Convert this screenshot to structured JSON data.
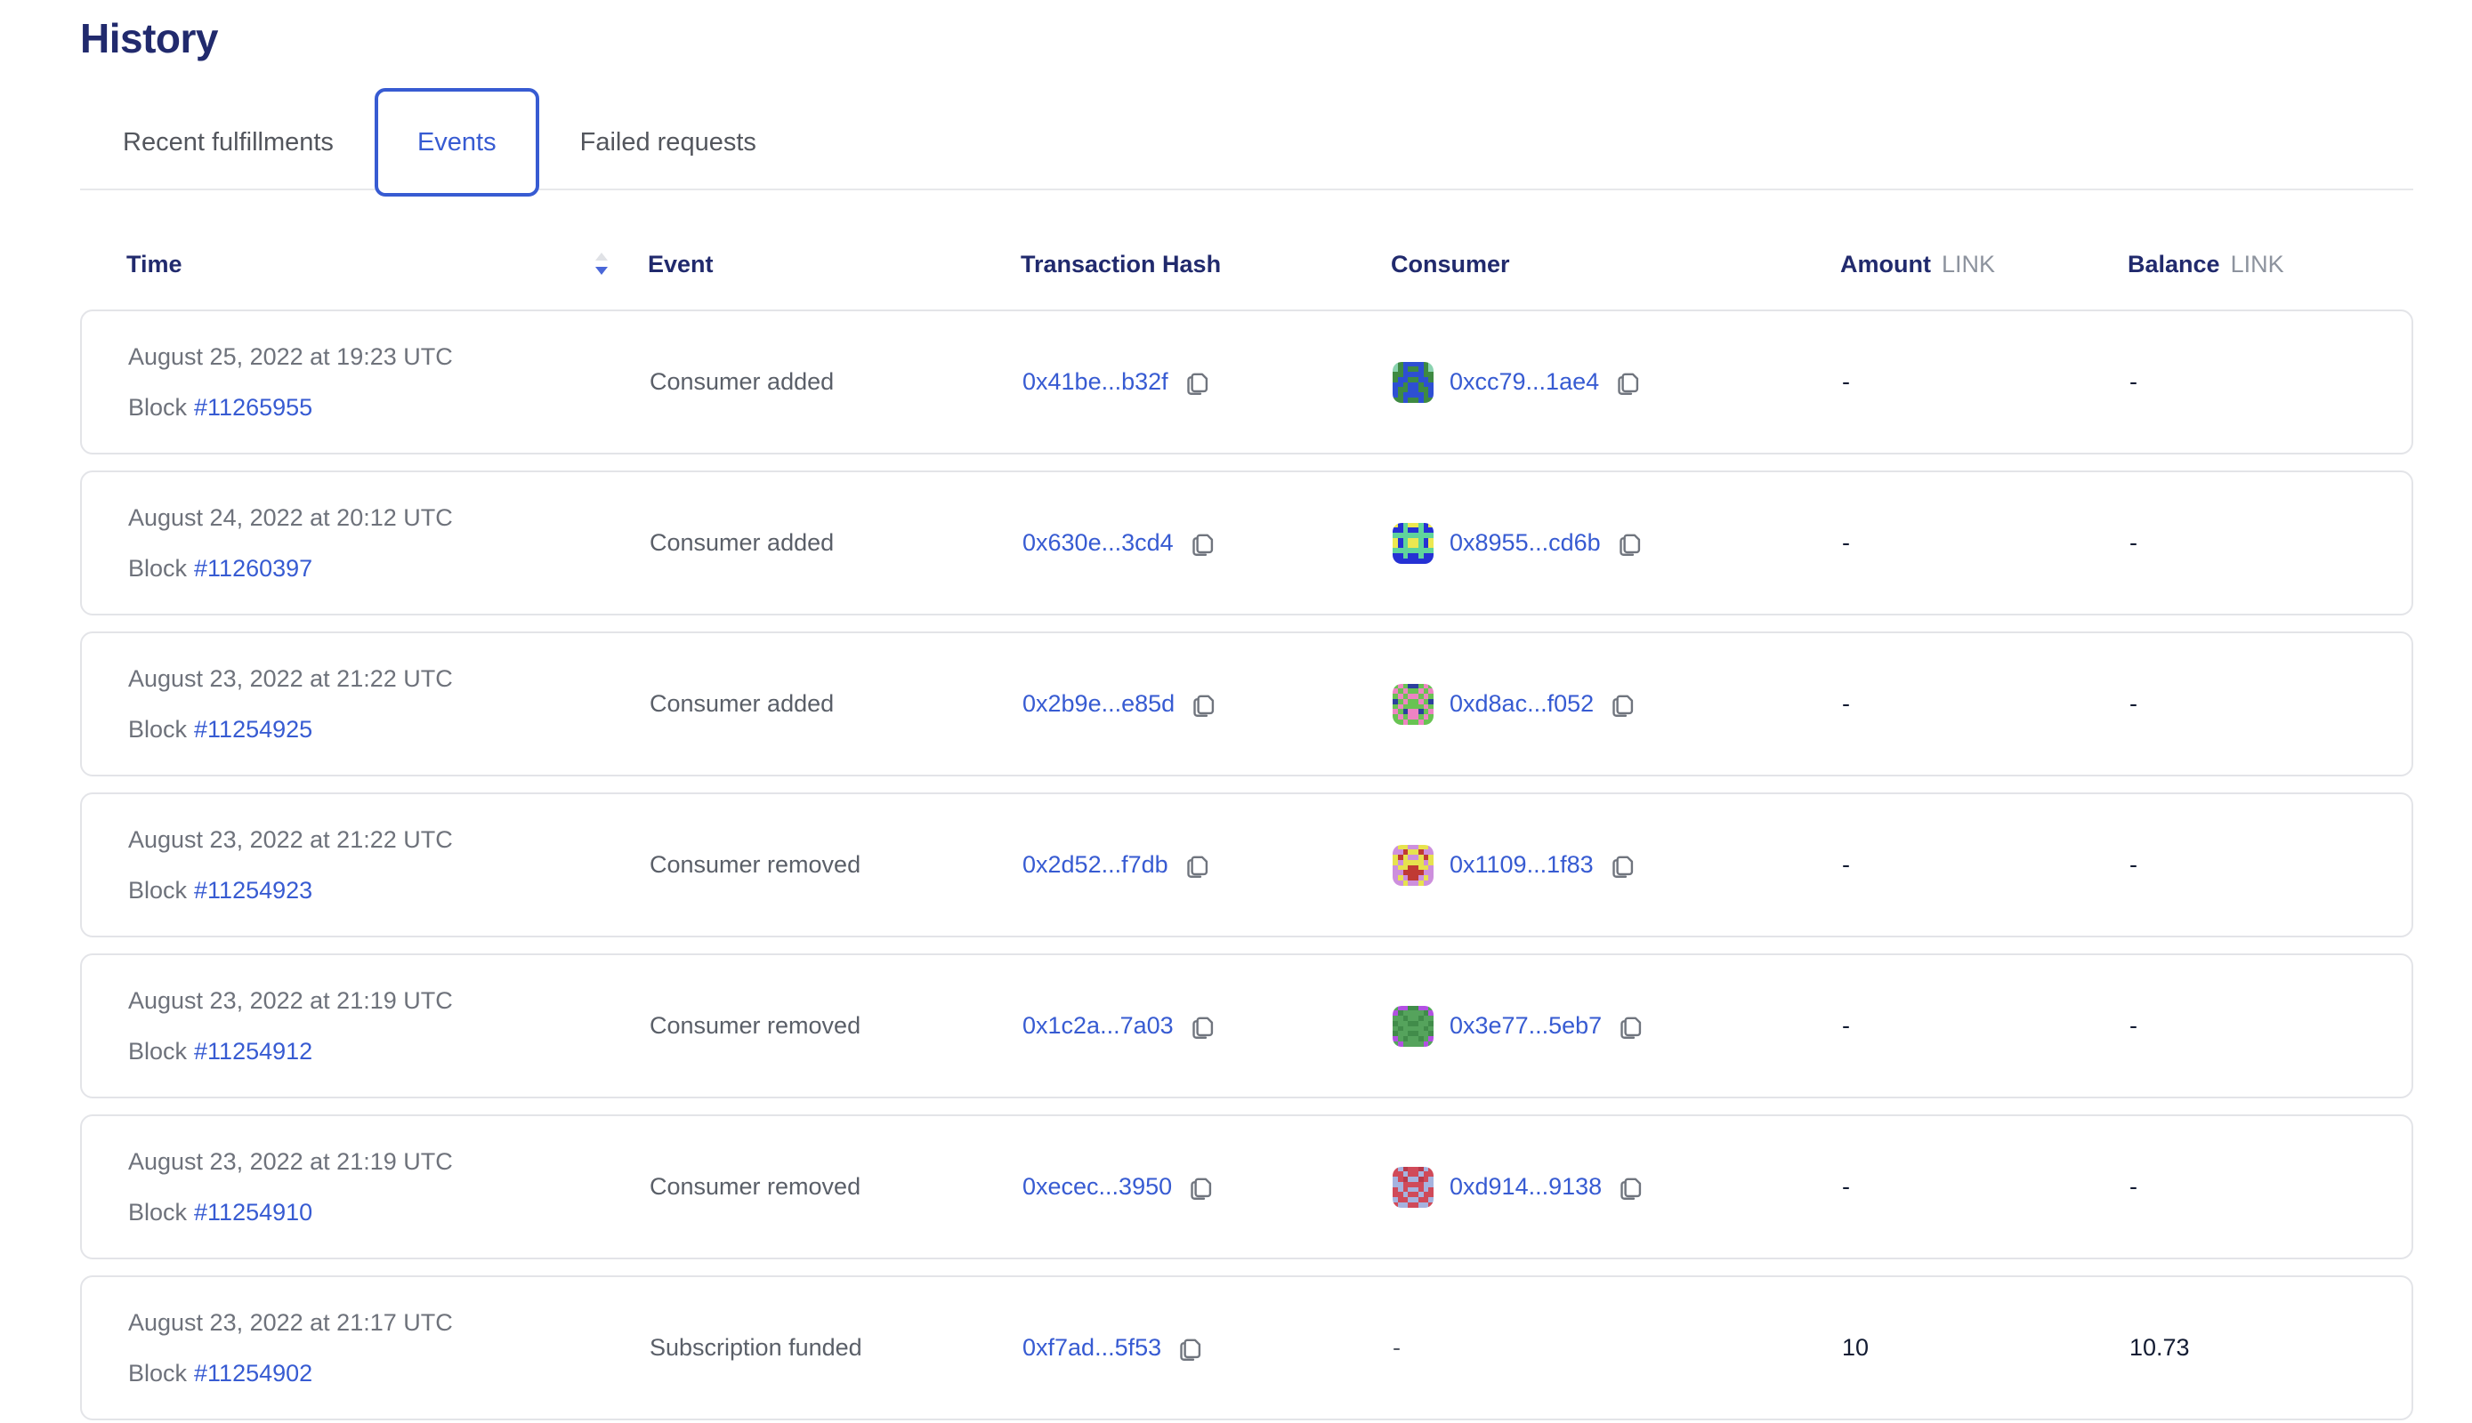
{
  "page": {
    "title": "History"
  },
  "tabs": [
    {
      "label": "Recent fulfillments",
      "active": false
    },
    {
      "label": "Events",
      "active": true
    },
    {
      "label": "Failed requests",
      "active": false
    }
  ],
  "table": {
    "headers": {
      "time": "Time",
      "event": "Event",
      "tx_hash": "Transaction Hash",
      "consumer": "Consumer",
      "amount": "Amount",
      "amount_unit": "LINK",
      "balance": "Balance",
      "balance_unit": "LINK"
    },
    "sort": {
      "column": "time",
      "direction": "desc"
    }
  },
  "colors": {
    "accent_blue": "#375bd2",
    "heading_navy": "#212a6d",
    "muted_gray": "#6e727b",
    "card_border": "#e3e4e8"
  },
  "rows": [
    {
      "date": "August 25, 2022 at 19:23 UTC",
      "block_label": "Block",
      "block_number": "#11265955",
      "event": "Consumer added",
      "tx_hash": "0x41be...b32f",
      "consumer": {
        "address": "0xcc79...1ae4",
        "identicon": {
          "palette": [
            "#3e8a42",
            "#2e4fd3",
            "#8bd3b0"
          ],
          "rows": [
            "20111102",
            "20100102",
            "00111100",
            "01100110",
            "11011011",
            "10011001",
            "10111101",
            "00100100"
          ]
        }
      },
      "amount": "-",
      "balance": "-"
    },
    {
      "date": "August 24, 2022 at 20:12 UTC",
      "block_label": "Block",
      "block_number": "#11260397",
      "event": "Consumer added",
      "tx_hash": "0x630e...3cd4",
      "consumer": {
        "address": "0x8955...cd6b",
        "identicon": {
          "palette": [
            "#2531d4",
            "#ece850",
            "#5fd49c"
          ],
          "rows": [
            "10211201",
            "00200200",
            "22222222",
            "10211201",
            "10211201",
            "22222222",
            "00200200",
            "00000000"
          ]
        }
      },
      "amount": "-",
      "balance": "-"
    },
    {
      "date": "August 23, 2022 at 21:22 UTC",
      "block_label": "Block",
      "block_number": "#11254925",
      "event": "Consumer added",
      "tx_hash": "0x2b9e...e85d",
      "consumer": {
        "address": "0xd8ac...f052",
        "identicon": {
          "palette": [
            "#68c353",
            "#2c3f9e",
            "#ee83c3"
          ],
          "rows": [
            "02011020",
            "20200202",
            "02022020",
            "10200201",
            "02000020",
            "20122102",
            "02022020",
            "00200200"
          ]
        }
      },
      "amount": "-",
      "balance": "-"
    },
    {
      "date": "August 23, 2022 at 21:22 UTC",
      "block_label": "Block",
      "block_number": "#11254923",
      "event": "Consumer removed",
      "tx_hash": "0x2d52...f7db",
      "consumer": {
        "address": "0x1109...1f83",
        "identicon": {
          "palette": [
            "#cd8fdd",
            "#e6e24e",
            "#c03a33"
          ],
          "rows": [
            "01100110",
            "00211200",
            "12100121",
            "10111101",
            "01122110",
            "00222200",
            "01022010",
            "00100100"
          ]
        }
      },
      "amount": "-",
      "balance": "-"
    },
    {
      "date": "August 23, 2022 at 21:19 UTC",
      "block_label": "Block",
      "block_number": "#11254912",
      "event": "Consumer removed",
      "tx_hash": "0x1c2a...7a03",
      "consumer": {
        "address": "0x3e77...5eb7",
        "identicon": {
          "palette": [
            "#55a35c",
            "#418c4a",
            "#b250e2"
          ],
          "rows": [
            "02211220",
            "21000012",
            "00100100",
            "10011001",
            "01000010",
            "10011001",
            "20100102",
            "02000020"
          ]
        }
      },
      "amount": "-",
      "balance": "-"
    },
    {
      "date": "August 23, 2022 at 21:19 UTC",
      "block_label": "Block",
      "block_number": "#11254910",
      "event": "Consumer removed",
      "tx_hash": "0xecec...3950",
      "consumer": {
        "address": "0xd914...9138",
        "identicon": {
          "palette": [
            "#a5b3df",
            "#d04a59",
            "#b93a4a"
          ],
          "rows": [
            "10211201",
            "11011011",
            "01200210",
            "00111100",
            "10100101",
            "11011011",
            "01100110",
            "10011001"
          ]
        }
      },
      "amount": "-",
      "balance": "-"
    },
    {
      "date": "August 23, 2022 at 21:17 UTC",
      "block_label": "Block",
      "block_number": "#11254902",
      "event": "Subscription funded",
      "tx_hash": "0xf7ad...5f53",
      "consumer": {
        "address": null,
        "placeholder": "-"
      },
      "amount": "10",
      "balance": "10.73"
    }
  ]
}
